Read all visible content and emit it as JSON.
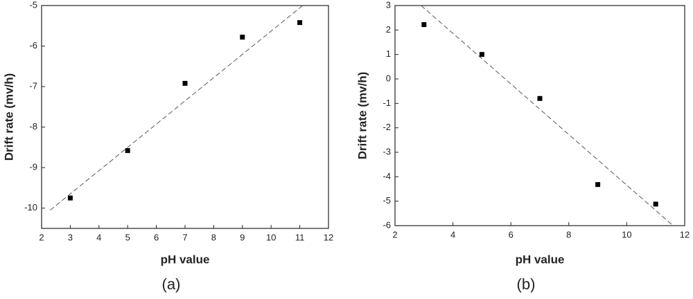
{
  "chart_data": [
    {
      "type": "scatter",
      "xlabel": "pH value",
      "ylabel": "Drift rate (mv/h)",
      "caption": "(a)",
      "x": [
        3,
        5,
        7,
        9,
        11
      ],
      "values": [
        -9.75,
        -8.58,
        -6.92,
        -5.78,
        -5.42
      ],
      "color": "#000000",
      "fit": {
        "x": [
          2.3,
          11.1
        ],
        "values": [
          -10.05,
          -5.0
        ],
        "color": "#555555"
      },
      "xlim": [
        2,
        12
      ],
      "xticks": [
        2,
        3,
        4,
        5,
        6,
        7,
        8,
        9,
        10,
        11,
        12
      ],
      "ylim": [
        -10.5,
        -5
      ],
      "yticks": [
        -10,
        -9,
        -8,
        -7,
        -6,
        -5
      ]
    },
    {
      "type": "scatter",
      "xlabel": "pH value",
      "ylabel": "Drift rate (mv/h)",
      "caption": "(b)",
      "x": [
        3,
        5,
        7,
        9,
        11
      ],
      "values": [
        2.22,
        1.0,
        -0.8,
        -4.32,
        -5.12
      ],
      "color": "#000000",
      "fit": {
        "x": [
          2.9,
          11.6
        ],
        "values": [
          3.0,
          -6.0
        ],
        "color": "#555555"
      },
      "xlim": [
        2,
        12
      ],
      "xticks": [
        2,
        4,
        6,
        8,
        10,
        12
      ],
      "ylim": [
        -6,
        3
      ],
      "yticks": [
        -6,
        -5,
        -4,
        -3,
        -2,
        -1,
        0,
        1,
        2,
        3
      ]
    }
  ]
}
